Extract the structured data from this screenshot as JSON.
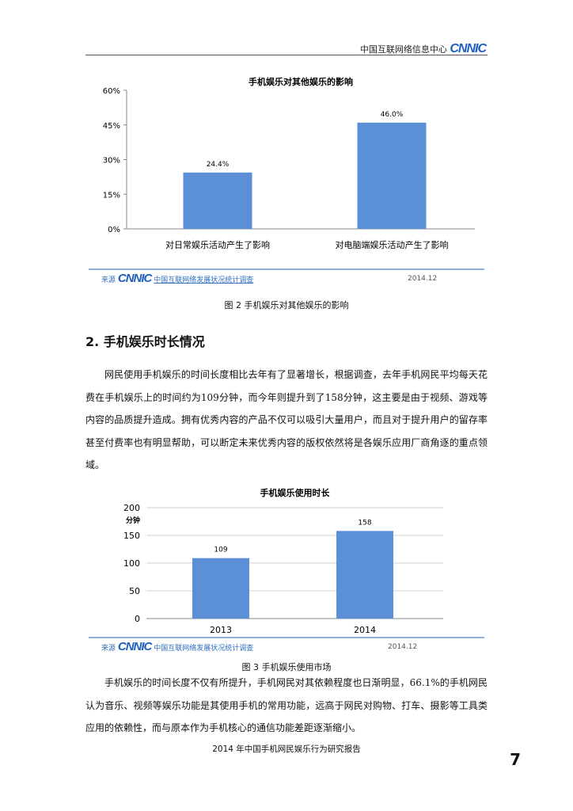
{
  "header": {
    "org": "中国互联网络信息中心",
    "logo": "CNNIC"
  },
  "figure2": {
    "source_label": "来源",
    "source_logo": "CNNIC",
    "source_name": "中国互联网络发展状况统计调查",
    "date": "2014.12",
    "caption": "图 2   手机娱乐对其他娱乐的影响"
  },
  "section": {
    "heading": "2.  手机娱乐时长情况",
    "paragraph": "网民使用手机娱乐的时间长度相比去年有了显著增长，根据调查，去年手机网民平均每天花费在手机娱乐上的时间约为109分钟，而今年则提升到了158分钟，这主要是由于视频、游戏等内容的品质提升造成。拥有优秀内容的产品不仅可以吸引大量用户，而且对于提升用户的留存率甚至付费率也有明显帮助，可以断定未来优秀内容的版权依然将是各娱乐应用厂商角逐的重点领域。"
  },
  "figure3": {
    "source_label": "来源",
    "source_logo": "CNNIC",
    "source_name": "中国互联网络发展状况统计调查",
    "date": "2014.12",
    "caption": "图 3   手机娱乐使用市场"
  },
  "paragraph2": "手机娱乐的时间长度不仅有所提升，手机网民对其依赖程度也日渐明显，66.1%的手机网民认为音乐、视频等娱乐功能是其使用手机的常用功能，远高于网民对购物、打车、摄影等工具类应用的依赖性，而与原本作为手机核心的通信功能差距逐渐缩小。",
  "footer": "2014 年中国手机网民娱乐行为研究报告",
  "page_number": "7",
  "chart_data": [
    {
      "type": "bar",
      "title": "手机娱乐对其他娱乐的影响",
      "categories": [
        "对日常娱乐活动产生了影响",
        "对电脑端娱乐活动产生了影响"
      ],
      "values": [
        24.4,
        46.0
      ],
      "data_labels": [
        "24.4%",
        "46.0%"
      ],
      "ylim": [
        0,
        60
      ],
      "yticks": [
        "0%",
        "15%",
        "30%",
        "45%",
        "60%"
      ],
      "grid": false,
      "color": "#5b8fd6"
    },
    {
      "type": "bar",
      "title": "手机娱乐使用时长",
      "ylabel": "分钟",
      "categories": [
        "2013",
        "2014"
      ],
      "values": [
        109,
        158
      ],
      "data_labels": [
        "109",
        "158"
      ],
      "ylim": [
        0,
        200
      ],
      "yticks": [
        "0",
        "50",
        "100",
        "150",
        "200"
      ],
      "grid": true,
      "color": "#5b8fd6"
    }
  ]
}
